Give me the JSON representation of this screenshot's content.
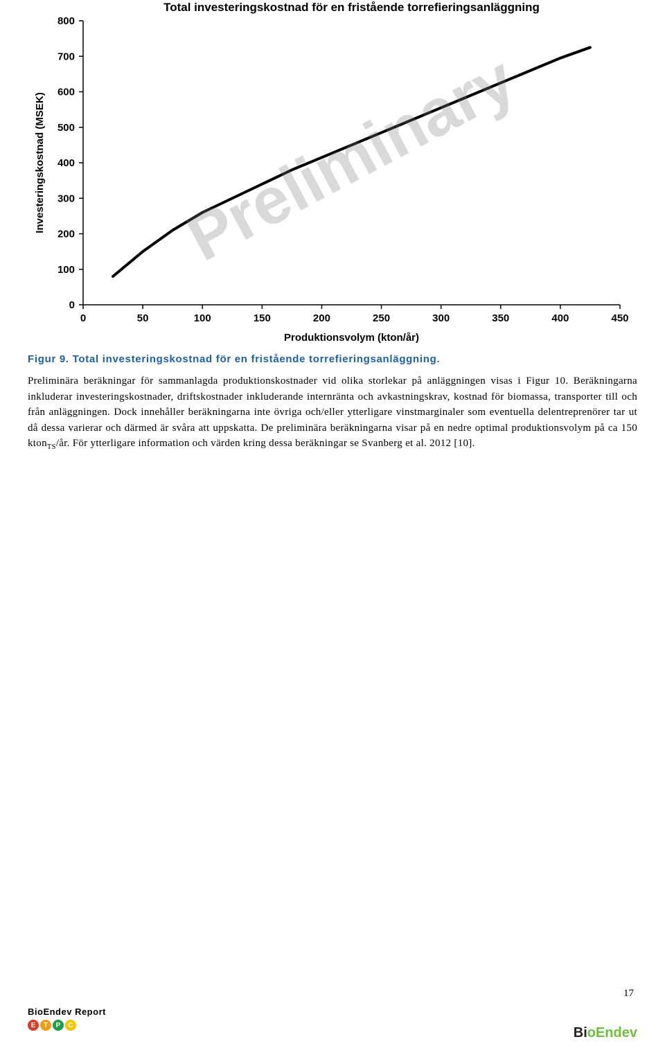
{
  "chart": {
    "type": "line",
    "title": "Total investeringskostnad för en fristående torrefieringsanläggning",
    "title_fontsize": 17,
    "xlabel": "Produktionsvolym (kton/år)",
    "ylabel": "Investeringskostnad (MSEK)",
    "label_fontsize": 15,
    "tick_fontsize": 15,
    "xlim": [
      0,
      450
    ],
    "ylim": [
      0,
      800
    ],
    "xtick_step": 50,
    "ytick_step": 100,
    "xticks": [
      0,
      50,
      100,
      150,
      200,
      250,
      300,
      350,
      400,
      450
    ],
    "yticks": [
      0,
      100,
      200,
      300,
      400,
      500,
      600,
      700,
      800
    ],
    "line_color": "#000000",
    "line_width": 4,
    "axis_color": "#000000",
    "tick_color": "#000000",
    "background_color": "#ffffff",
    "series_x": [
      25,
      50,
      75,
      100,
      125,
      150,
      175,
      200,
      225,
      250,
      275,
      300,
      325,
      350,
      375,
      400,
      425
    ],
    "series_y": [
      80,
      150,
      210,
      260,
      300,
      340,
      380,
      415,
      450,
      485,
      520,
      555,
      590,
      625,
      660,
      695,
      725
    ]
  },
  "watermark": {
    "text": "Preliminary",
    "color": "rgba(128,128,128,0.3)",
    "fontsize": 95,
    "rotation_deg": -28
  },
  "caption": "Figur 9. Total investeringskostnad för en fristående torrefieringsanläggning.",
  "body": "Preliminära beräkningar för sammanlagda produktionskostnader vid olika storlekar på anläggningen visas i Figur 10. Beräkningarna inkluderar investeringskostnader, driftskostnader inkluderande internränta och avkastningskrav, kostnad för biomassa, transporter till och från anläggningen. Dock innehåller beräkningarna inte övriga och/eller ytterligare vinstmarginaler som eventuella delentreprenörer tar ut då dessa varierar och därmed är svåra att uppskatta. De preliminära beräkningarna visar på en nedre optimal produktionsvolym på ca 150 kton",
  "body_sub": "TS",
  "body_after": "/år. För ytterligare information och värden kring dessa beräkningar se Svanberg et al. 2012 [10].",
  "page_number": "17",
  "footer": {
    "left_label": "BioEndev Report",
    "etpc_colors": [
      "#d93a2b",
      "#f39c12",
      "#1f9e4b",
      "#f7c600"
    ],
    "etpc_letters": [
      "E",
      "T",
      "P",
      "C"
    ],
    "right_brand_bio": "Bi",
    "right_brand_leaf": "❀",
    "right_brand_e": "o",
    "right_brand_end": "Endev"
  }
}
